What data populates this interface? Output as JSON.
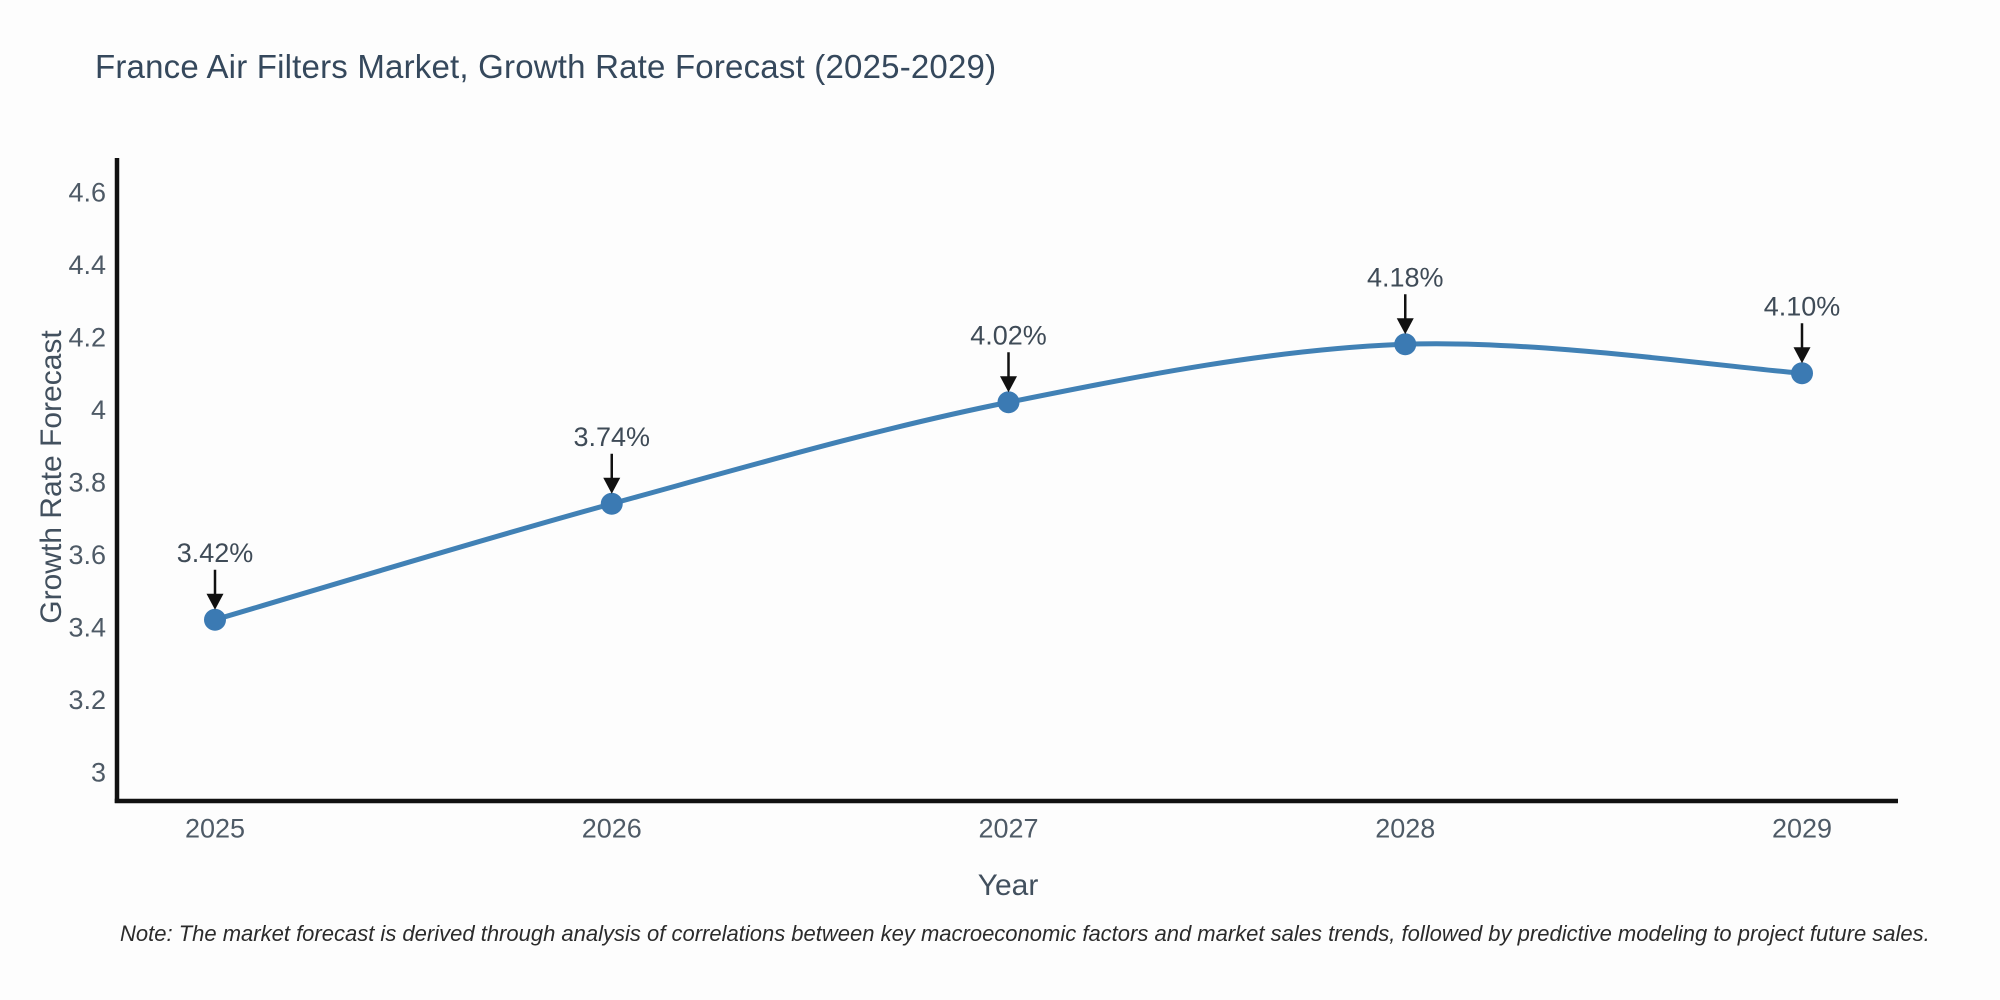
{
  "title": "France Air Filters Market, Growth Rate Forecast (2025-2029)",
  "note": "Note: The market forecast is derived through analysis of correlations between key macroeconomic factors and market sales trends, followed by predictive modeling to project future sales.",
  "chart_data": {
    "type": "line",
    "line_shape": "spline",
    "title": "France Air Filters Market, Growth Rate Forecast (2025-2029)",
    "xlabel": "Year",
    "ylabel": "Growth Rate Forecast",
    "x": [
      2025,
      2026,
      2027,
      2028,
      2029
    ],
    "values": [
      3.42,
      3.74,
      4.02,
      4.18,
      4.1
    ],
    "point_labels": [
      "3.42%",
      "3.74%",
      "4.02%",
      "4.18%",
      "4.10%"
    ],
    "xtick_labels": [
      "2025",
      "2026",
      "2027",
      "2028",
      "2029"
    ],
    "yticks": [
      3,
      3.2,
      3.4,
      3.6,
      3.8,
      4,
      4.2,
      4.4,
      4.6
    ],
    "ytick_labels": [
      "3",
      "3.2",
      "3.4",
      "3.6",
      "3.8",
      "4",
      "4.2",
      "4.4",
      "4.6"
    ],
    "ylim": [
      2.92,
      4.69
    ],
    "grid": false,
    "legend": "none",
    "annotations_have_arrows": true,
    "colors": {
      "line": "#4181b5",
      "marker": "#3b7ab3",
      "axis": "#111111",
      "tick_label": "#4e5a66",
      "axis_title": "#42505e",
      "chart_title": "#35485c",
      "annotation_text": "#3f4b57",
      "arrow": "#111111",
      "note_text": "#2b2b2b",
      "background": "#fdfdfd"
    }
  }
}
